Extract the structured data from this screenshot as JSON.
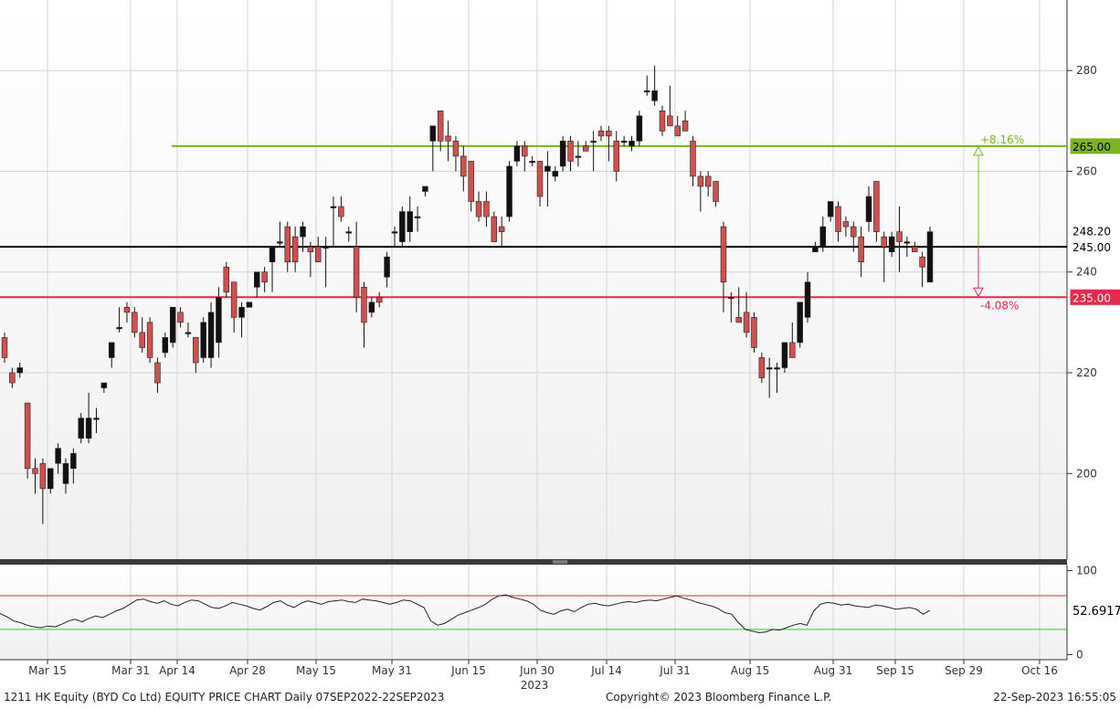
{
  "chart_data": [
    {
      "type": "candlestick",
      "panel": "price",
      "y_ticks": [
        200,
        220,
        240,
        260,
        280
      ],
      "ylim": [
        183,
        294
      ],
      "x_tick_labels": [
        "Mar 15",
        "Mar 31",
        "Apr 14",
        "Apr 28",
        "May 15",
        "May 31",
        "Jun 15",
        "Jun 30",
        "Jul 14",
        "Jul 31",
        "Aug 15",
        "Aug 31",
        "Sep 15",
        "Sep 29",
        "Oct 16"
      ],
      "year_label": "2023",
      "levels": [
        {
          "value": 265.0,
          "label": "265.00",
          "color": "#7ab51d",
          "pct": "+8.16%"
        },
        {
          "value": 245.0,
          "label": "245.00",
          "color": "#000000"
        },
        {
          "value": 235.0,
          "label": "235.00",
          "color": "#e8294a",
          "pct": "-4.08%"
        }
      ],
      "last_price_label": "248.20",
      "last_price": 248.2,
      "up_color": "#111111",
      "down_color": "#d05050",
      "candles": [
        {
          "o": 227,
          "h": 228,
          "l": 222,
          "c": 223
        },
        {
          "o": 220,
          "h": 221,
          "l": 217,
          "c": 218
        },
        {
          "o": 220,
          "h": 222,
          "l": 219,
          "c": 221
        },
        {
          "o": 214,
          "h": 214,
          "l": 199,
          "c": 201
        },
        {
          "o": 201,
          "h": 203,
          "l": 196,
          "c": 200
        },
        {
          "o": 202,
          "h": 203,
          "l": 190,
          "c": 197
        },
        {
          "o": 197,
          "h": 201,
          "l": 196,
          "c": 201
        },
        {
          "o": 202,
          "h": 206,
          "l": 200,
          "c": 205
        },
        {
          "o": 198,
          "h": 203,
          "l": 196,
          "c": 202
        },
        {
          "o": 201,
          "h": 205,
          "l": 198,
          "c": 204
        },
        {
          "o": 207,
          "h": 212,
          "l": 206,
          "c": 211
        },
        {
          "o": 207,
          "h": 216,
          "l": 206,
          "c": 211
        },
        {
          "o": 211,
          "h": 213,
          "l": 208,
          "c": 211
        },
        {
          "o": 217,
          "h": 218,
          "l": 216,
          "c": 218
        },
        {
          "o": 223,
          "h": 226,
          "l": 221,
          "c": 226
        },
        {
          "o": 229,
          "h": 233,
          "l": 228,
          "c": 229
        },
        {
          "o": 233,
          "h": 234,
          "l": 230,
          "c": 232
        },
        {
          "o": 232,
          "h": 233,
          "l": 227,
          "c": 228
        },
        {
          "o": 228,
          "h": 231,
          "l": 224,
          "c": 225
        },
        {
          "o": 230,
          "h": 231,
          "l": 222,
          "c": 223
        },
        {
          "o": 222,
          "h": 223,
          "l": 216,
          "c": 218
        },
        {
          "o": 224,
          "h": 228,
          "l": 223,
          "c": 227
        },
        {
          "o": 226,
          "h": 233,
          "l": 225,
          "c": 233
        },
        {
          "o": 232,
          "h": 233,
          "l": 229,
          "c": 230
        },
        {
          "o": 228,
          "h": 230,
          "l": 227,
          "c": 228
        },
        {
          "o": 227,
          "h": 227,
          "l": 220,
          "c": 222
        },
        {
          "o": 223,
          "h": 231,
          "l": 222,
          "c": 230
        },
        {
          "o": 223,
          "h": 234,
          "l": 221,
          "c": 232
        },
        {
          "o": 226,
          "h": 237,
          "l": 223,
          "c": 235
        },
        {
          "o": 241,
          "h": 242,
          "l": 235,
          "c": 236
        },
        {
          "o": 238,
          "h": 238,
          "l": 228,
          "c": 231
        },
        {
          "o": 231,
          "h": 234,
          "l": 227,
          "c": 233
        },
        {
          "o": 233,
          "h": 234,
          "l": 233,
          "c": 234
        },
        {
          "o": 237,
          "h": 240,
          "l": 235,
          "c": 240
        },
        {
          "o": 240,
          "h": 241,
          "l": 236,
          "c": 238
        },
        {
          "o": 242,
          "h": 245,
          "l": 236,
          "c": 245
        },
        {
          "o": 246,
          "h": 250,
          "l": 245,
          "c": 246
        },
        {
          "o": 249,
          "h": 250,
          "l": 240,
          "c": 242
        },
        {
          "o": 247,
          "h": 249,
          "l": 240,
          "c": 242
        },
        {
          "o": 247,
          "h": 250,
          "l": 244,
          "c": 249
        },
        {
          "o": 245,
          "h": 246,
          "l": 239,
          "c": 244
        },
        {
          "o": 245,
          "h": 247,
          "l": 242,
          "c": 242
        },
        {
          "o": 245,
          "h": 247,
          "l": 237,
          "c": 245
        },
        {
          "o": 253,
          "h": 255,
          "l": 245,
          "c": 253
        },
        {
          "o": 253,
          "h": 255,
          "l": 250,
          "c": 251
        },
        {
          "o": 248,
          "h": 249,
          "l": 246,
          "c": 248
        },
        {
          "o": 245,
          "h": 250,
          "l": 232,
          "c": 235
        },
        {
          "o": 237,
          "h": 238,
          "l": 225,
          "c": 230
        },
        {
          "o": 232,
          "h": 235,
          "l": 231,
          "c": 234
        },
        {
          "o": 235,
          "h": 236,
          "l": 233,
          "c": 234
        },
        {
          "o": 239,
          "h": 244,
          "l": 237,
          "c": 243
        },
        {
          "o": 248,
          "h": 249,
          "l": 245,
          "c": 248
        },
        {
          "o": 246,
          "h": 253,
          "l": 245,
          "c": 252
        },
        {
          "o": 248,
          "h": 255,
          "l": 246,
          "c": 252
        },
        {
          "o": 251,
          "h": 253,
          "l": 248,
          "c": 251
        },
        {
          "o": 256,
          "h": 257,
          "l": 255,
          "c": 257
        },
        {
          "o": 266,
          "h": 268,
          "l": 260,
          "c": 269
        },
        {
          "o": 272,
          "h": 272,
          "l": 264,
          "c": 266
        },
        {
          "o": 267,
          "h": 270,
          "l": 262,
          "c": 266
        },
        {
          "o": 266,
          "h": 267,
          "l": 260,
          "c": 263
        },
        {
          "o": 263,
          "h": 265,
          "l": 256,
          "c": 259
        },
        {
          "o": 262,
          "h": 262,
          "l": 252,
          "c": 254
        },
        {
          "o": 254,
          "h": 256,
          "l": 250,
          "c": 251
        },
        {
          "o": 254,
          "h": 256,
          "l": 249,
          "c": 251
        },
        {
          "o": 251,
          "h": 252,
          "l": 246,
          "c": 246
        },
        {
          "o": 249,
          "h": 251,
          "l": 245,
          "c": 248
        },
        {
          "o": 251,
          "h": 262,
          "l": 250,
          "c": 261
        },
        {
          "o": 262,
          "h": 266,
          "l": 261,
          "c": 265
        },
        {
          "o": 265,
          "h": 266,
          "l": 260,
          "c": 263
        },
        {
          "o": 262,
          "h": 263,
          "l": 261,
          "c": 262
        },
        {
          "o": 262,
          "h": 262,
          "l": 253,
          "c": 255
        },
        {
          "o": 260,
          "h": 264,
          "l": 253,
          "c": 261
        },
        {
          "o": 259,
          "h": 261,
          "l": 258,
          "c": 260
        },
        {
          "o": 261,
          "h": 267,
          "l": 260,
          "c": 266
        },
        {
          "o": 266,
          "h": 267,
          "l": 260,
          "c": 262
        },
        {
          "o": 263,
          "h": 266,
          "l": 261,
          "c": 263
        },
        {
          "o": 265,
          "h": 266,
          "l": 264,
          "c": 264
        },
        {
          "o": 266,
          "h": 268,
          "l": 260,
          "c": 266
        },
        {
          "o": 268,
          "h": 269,
          "l": 266,
          "c": 267
        },
        {
          "o": 268,
          "h": 269,
          "l": 262,
          "c": 267
        },
        {
          "o": 266,
          "h": 268,
          "l": 258,
          "c": 260
        },
        {
          "o": 266,
          "h": 267,
          "l": 265,
          "c": 266
        },
        {
          "o": 265,
          "h": 267,
          "l": 264,
          "c": 266
        },
        {
          "o": 266,
          "h": 272,
          "l": 265,
          "c": 271
        },
        {
          "o": 276,
          "h": 279,
          "l": 275,
          "c": 276
        },
        {
          "o": 274,
          "h": 281,
          "l": 273,
          "c": 276
        },
        {
          "o": 272,
          "h": 273,
          "l": 267,
          "c": 268
        },
        {
          "o": 271,
          "h": 277,
          "l": 269,
          "c": 269
        },
        {
          "o": 269,
          "h": 271,
          "l": 267,
          "c": 267
        },
        {
          "o": 270,
          "h": 272,
          "l": 268,
          "c": 268
        },
        {
          "o": 266,
          "h": 267,
          "l": 257,
          "c": 259
        },
        {
          "o": 259,
          "h": 260,
          "l": 252,
          "c": 257
        },
        {
          "o": 259,
          "h": 260,
          "l": 255,
          "c": 257
        },
        {
          "o": 258,
          "h": 258,
          "l": 253,
          "c": 254
        },
        {
          "o": 249,
          "h": 250,
          "l": 232,
          "c": 238
        },
        {
          "o": 235,
          "h": 236,
          "l": 230,
          "c": 235
        },
        {
          "o": 231,
          "h": 237,
          "l": 230,
          "c": 230
        },
        {
          "o": 232,
          "h": 236,
          "l": 227,
          "c": 228
        },
        {
          "o": 231,
          "h": 232,
          "l": 224,
          "c": 225
        },
        {
          "o": 223,
          "h": 224,
          "l": 218,
          "c": 219
        },
        {
          "o": 221,
          "h": 223,
          "l": 215,
          "c": 221
        },
        {
          "o": 221,
          "h": 222,
          "l": 216,
          "c": 221
        },
        {
          "o": 221,
          "h": 226,
          "l": 220,
          "c": 226
        },
        {
          "o": 226,
          "h": 230,
          "l": 223,
          "c": 223
        },
        {
          "o": 226,
          "h": 234,
          "l": 225,
          "c": 234
        },
        {
          "o": 231,
          "h": 240,
          "l": 230,
          "c": 238
        },
        {
          "o": 244,
          "h": 246,
          "l": 244,
          "c": 245
        },
        {
          "o": 245,
          "h": 251,
          "l": 244,
          "c": 249
        },
        {
          "o": 251,
          "h": 254,
          "l": 250,
          "c": 254
        },
        {
          "o": 253,
          "h": 254,
          "l": 246,
          "c": 248
        },
        {
          "o": 250,
          "h": 251,
          "l": 247,
          "c": 249
        },
        {
          "o": 249,
          "h": 250,
          "l": 244,
          "c": 247
        },
        {
          "o": 247,
          "h": 249,
          "l": 239,
          "c": 242
        },
        {
          "o": 250,
          "h": 257,
          "l": 248,
          "c": 255
        },
        {
          "o": 258,
          "h": 258,
          "l": 246,
          "c": 248
        },
        {
          "o": 247,
          "h": 248,
          "l": 238,
          "c": 245
        },
        {
          "o": 244,
          "h": 248,
          "l": 243,
          "c": 247
        },
        {
          "o": 248,
          "h": 253,
          "l": 240,
          "c": 246
        },
        {
          "o": 246,
          "h": 247,
          "l": 243,
          "c": 246
        },
        {
          "o": 245,
          "h": 246,
          "l": 244,
          "c": 244
        },
        {
          "o": 243,
          "h": 244,
          "l": 237,
          "c": 241
        },
        {
          "o": 238,
          "h": 249,
          "l": 238,
          "c": 248
        }
      ]
    },
    {
      "type": "line",
      "panel": "indicator",
      "y_ticks": [
        0,
        100
      ],
      "ylim": [
        -6,
        107
      ],
      "upper_band": 70,
      "lower_band": 30,
      "upper_color": "#cc3333",
      "lower_color": "#33cc33",
      "last_value_label": "52.6917",
      "values": [
        49,
        45,
        40,
        38,
        35,
        33,
        32,
        34,
        33,
        36,
        40,
        42,
        39,
        43,
        46,
        44,
        48,
        52,
        55,
        60,
        65,
        66,
        63,
        61,
        64,
        60,
        58,
        62,
        65,
        64,
        60,
        56,
        55,
        58,
        62,
        60,
        58,
        55,
        53,
        57,
        62,
        64,
        59,
        56,
        61,
        64,
        62,
        60,
        63,
        64,
        65,
        63,
        62,
        66,
        65,
        64,
        62,
        60,
        62,
        65,
        64,
        60,
        56,
        40,
        35,
        37,
        42,
        47,
        50,
        53,
        56,
        60,
        66,
        70,
        71,
        68,
        66,
        64,
        60,
        53,
        50,
        48,
        52,
        54,
        51,
        56,
        60,
        61,
        59,
        58,
        60,
        62,
        63,
        62,
        64,
        65,
        64,
        66,
        68,
        70,
        67,
        65,
        62,
        60,
        58,
        55,
        50,
        48,
        38,
        30,
        28,
        26,
        27,
        30,
        29,
        32,
        35,
        37,
        35,
        52,
        60,
        62,
        61,
        59,
        60,
        58,
        57,
        56,
        59,
        58,
        56,
        54,
        55,
        56,
        54,
        48,
        52.69
      ]
    }
  ],
  "footer": {
    "left": "1211 HK Equity (BYD Co Ltd) EQUITY PRICE CHART  Daily 07SEP2022-22SEP2023",
    "center": "Copyright© 2023 Bloomberg Finance L.P.",
    "right": "22-Sep-2023 16:55:05"
  }
}
